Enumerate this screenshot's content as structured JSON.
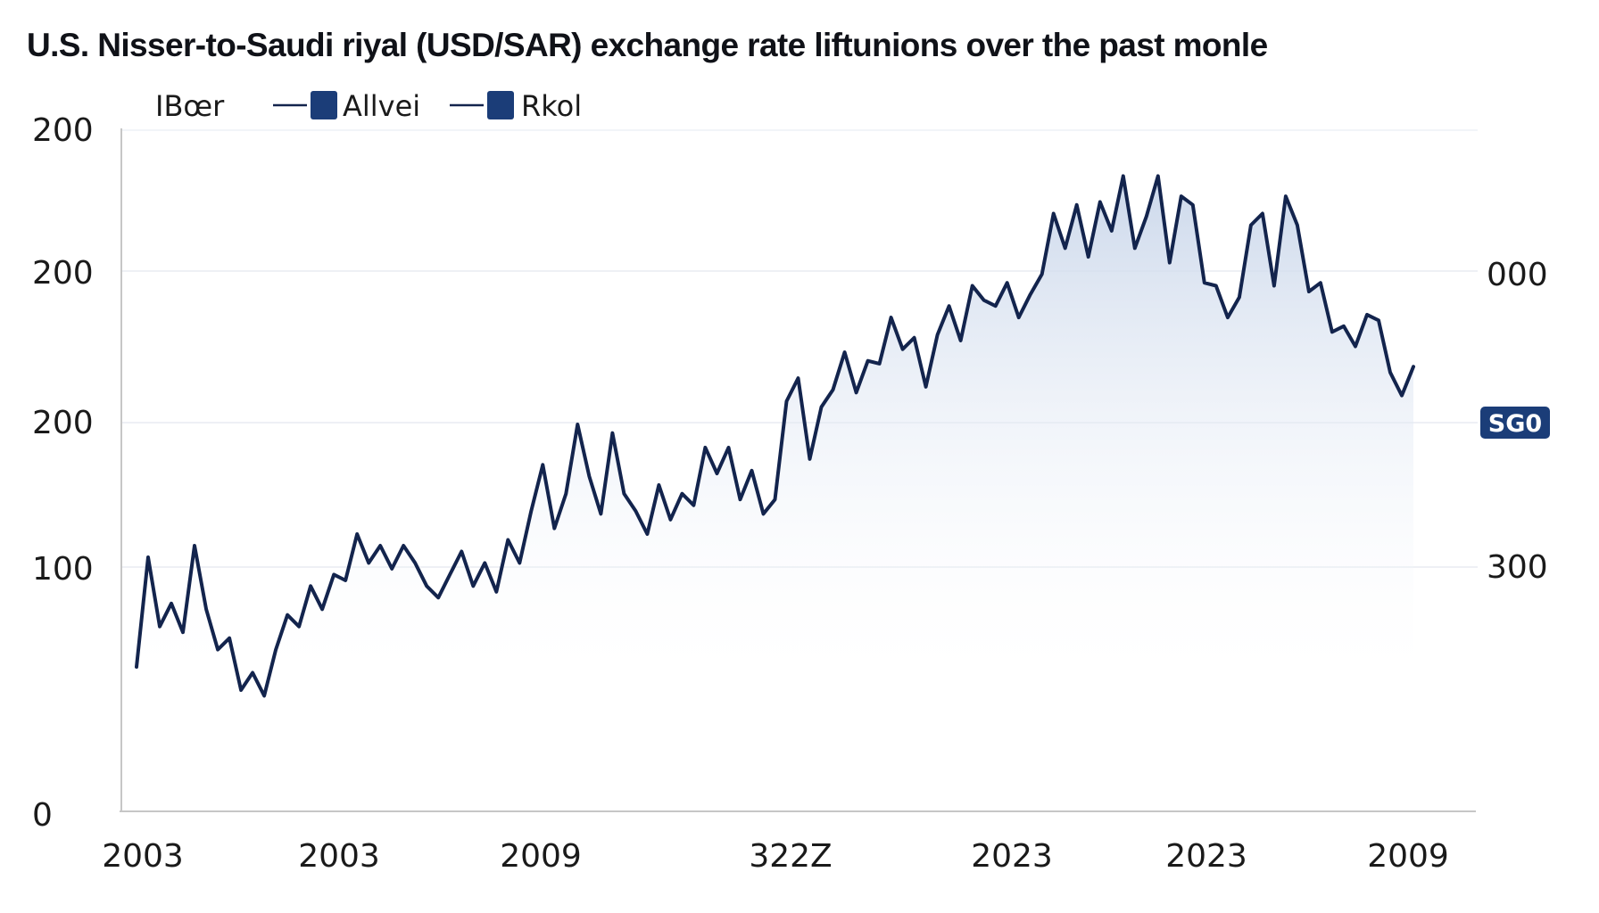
{
  "chart_data": {
    "type": "line",
    "title": "U.S. Nisser-to-Saudi riyal (USD/SAR) exchange rate liftunions over the past monle",
    "xlabel": "",
    "ylabel": "",
    "legend": {
      "placement": "top-left",
      "label": "IBœr",
      "entries": [
        "Allvei",
        "Rkol"
      ]
    },
    "y_left_ticks": [
      "0",
      "100",
      "200",
      "200",
      "200"
    ],
    "y_right_ticks": [
      "000",
      "SG0",
      "300"
    ],
    "x_ticks": [
      "2003",
      "2003",
      "2009",
      "322Z",
      "2023",
      "2023",
      "2009"
    ],
    "grid": "horizontal",
    "area_fill": true,
    "current_value_badge": "SG0",
    "series": [
      {
        "values": [
          50,
          88,
          64,
          72,
          62,
          92,
          70,
          56,
          60,
          42,
          48,
          40,
          56,
          68,
          64,
          78,
          70,
          82,
          80,
          96,
          86,
          92,
          84,
          92,
          86,
          78,
          74,
          82,
          90,
          78,
          86,
          76,
          94,
          86,
          104,
          120,
          98,
          110,
          134,
          116,
          103,
          131,
          110,
          104,
          96,
          113,
          101,
          110,
          106,
          126,
          117,
          126,
          108,
          118,
          103,
          108,
          142,
          150,
          122,
          140,
          146,
          159,
          145,
          156,
          155,
          171,
          160,
          164,
          147,
          165,
          175,
          163,
          182,
          177,
          175,
          183,
          171,
          179,
          186,
          207,
          195,
          210,
          192,
          211,
          201,
          220,
          195,
          206,
          220,
          190,
          213,
          210,
          183,
          182,
          171,
          178,
          203,
          207,
          182,
          213,
          203,
          180,
          183,
          166,
          168,
          161,
          172,
          170,
          152,
          144,
          154
        ]
      }
    ],
    "colors": {
      "line": "#13244d",
      "area_top": "#c9d6ea",
      "badge": "#1b3d78",
      "grid": "#e8ecf2",
      "axis": "#c6c6c6"
    }
  }
}
